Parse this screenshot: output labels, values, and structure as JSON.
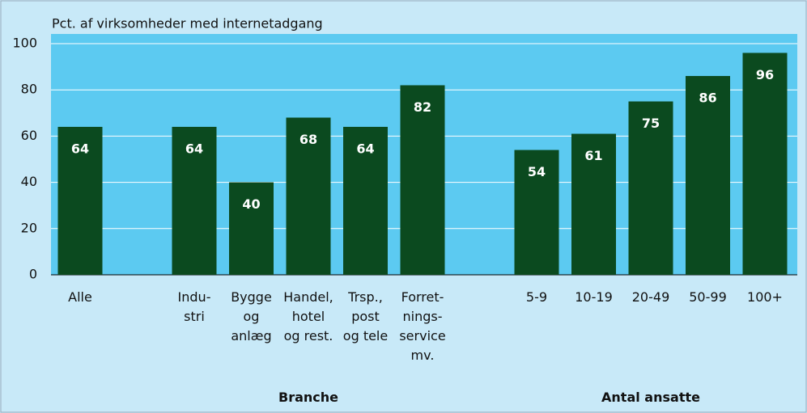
{
  "chart_data": {
    "type": "bar",
    "y_label": "Pct. af virksomheder med internetadgang",
    "categories": [
      "Alle",
      null,
      "Indu-\nstri",
      "Bygge\nog\nanlæg",
      "Handel,\nhotel\nog rest.",
      "Trsp.,\npost\nog tele",
      "Forret-\nnings-\nservice\nmv.",
      null,
      "5-9",
      "10-19",
      "20-49",
      "50-99",
      "100+"
    ],
    "values": [
      64,
      null,
      64,
      40,
      68,
      64,
      82,
      null,
      54,
      61,
      75,
      86,
      96
    ],
    "groups": [
      "Branche",
      "Antal ansatte"
    ],
    "color": "#0b4a1f",
    "ylim": [
      0,
      100
    ],
    "yticks": [
      0,
      20,
      40,
      60,
      80,
      100
    ],
    "grid": true
  }
}
